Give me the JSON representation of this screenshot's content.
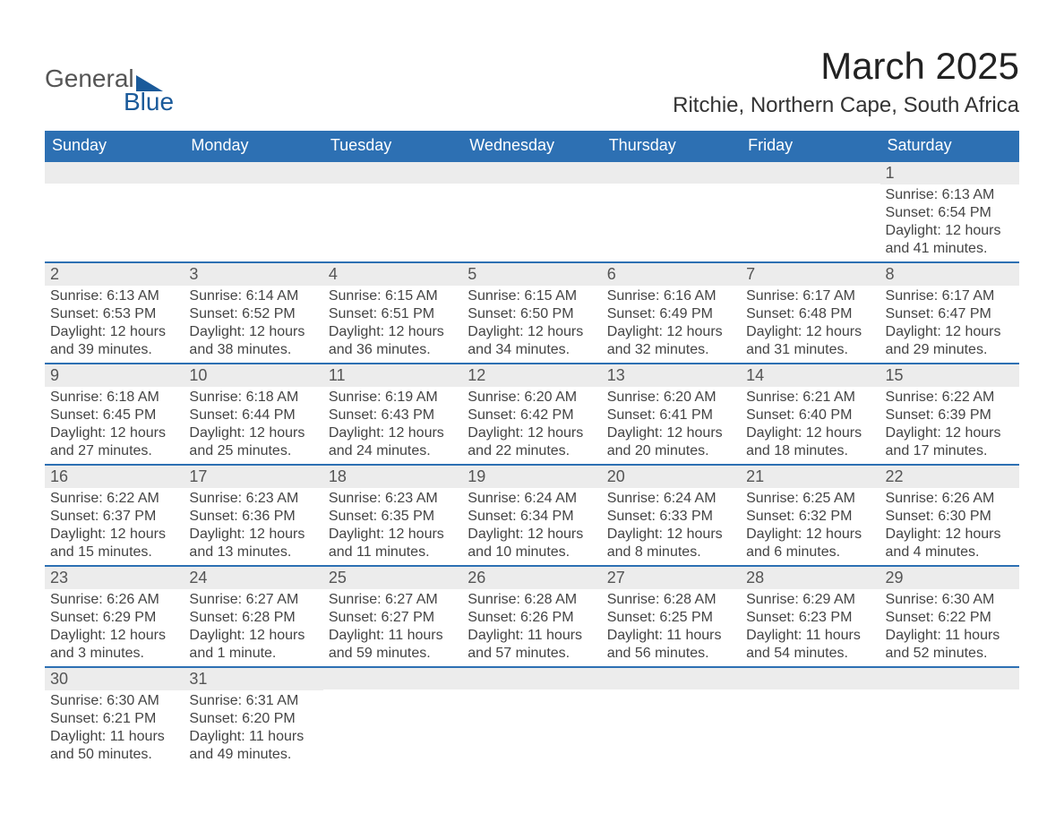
{
  "logo": {
    "text1": "General",
    "text2": "Blue"
  },
  "title": "March 2025",
  "location": "Ritchie, Northern Cape, South Africa",
  "colors": {
    "header_bg": "#2d70b3",
    "header_text": "#ffffff",
    "row_border": "#2d70b3",
    "daynum_bg": "#ececec",
    "body_text": "#444444",
    "title_text": "#222222",
    "logo_gray": "#555555",
    "logo_blue": "#1a5a9a"
  },
  "daysOfWeek": [
    "Sunday",
    "Monday",
    "Tuesday",
    "Wednesday",
    "Thursday",
    "Friday",
    "Saturday"
  ],
  "weeks": [
    [
      null,
      null,
      null,
      null,
      null,
      null,
      {
        "n": "1",
        "sunrise": "Sunrise: 6:13 AM",
        "sunset": "Sunset: 6:54 PM",
        "dl": "Daylight: 12 hours and 41 minutes."
      }
    ],
    [
      {
        "n": "2",
        "sunrise": "Sunrise: 6:13 AM",
        "sunset": "Sunset: 6:53 PM",
        "dl": "Daylight: 12 hours and 39 minutes."
      },
      {
        "n": "3",
        "sunrise": "Sunrise: 6:14 AM",
        "sunset": "Sunset: 6:52 PM",
        "dl": "Daylight: 12 hours and 38 minutes."
      },
      {
        "n": "4",
        "sunrise": "Sunrise: 6:15 AM",
        "sunset": "Sunset: 6:51 PM",
        "dl": "Daylight: 12 hours and 36 minutes."
      },
      {
        "n": "5",
        "sunrise": "Sunrise: 6:15 AM",
        "sunset": "Sunset: 6:50 PM",
        "dl": "Daylight: 12 hours and 34 minutes."
      },
      {
        "n": "6",
        "sunrise": "Sunrise: 6:16 AM",
        "sunset": "Sunset: 6:49 PM",
        "dl": "Daylight: 12 hours and 32 minutes."
      },
      {
        "n": "7",
        "sunrise": "Sunrise: 6:17 AM",
        "sunset": "Sunset: 6:48 PM",
        "dl": "Daylight: 12 hours and 31 minutes."
      },
      {
        "n": "8",
        "sunrise": "Sunrise: 6:17 AM",
        "sunset": "Sunset: 6:47 PM",
        "dl": "Daylight: 12 hours and 29 minutes."
      }
    ],
    [
      {
        "n": "9",
        "sunrise": "Sunrise: 6:18 AM",
        "sunset": "Sunset: 6:45 PM",
        "dl": "Daylight: 12 hours and 27 minutes."
      },
      {
        "n": "10",
        "sunrise": "Sunrise: 6:18 AM",
        "sunset": "Sunset: 6:44 PM",
        "dl": "Daylight: 12 hours and 25 minutes."
      },
      {
        "n": "11",
        "sunrise": "Sunrise: 6:19 AM",
        "sunset": "Sunset: 6:43 PM",
        "dl": "Daylight: 12 hours and 24 minutes."
      },
      {
        "n": "12",
        "sunrise": "Sunrise: 6:20 AM",
        "sunset": "Sunset: 6:42 PM",
        "dl": "Daylight: 12 hours and 22 minutes."
      },
      {
        "n": "13",
        "sunrise": "Sunrise: 6:20 AM",
        "sunset": "Sunset: 6:41 PM",
        "dl": "Daylight: 12 hours and 20 minutes."
      },
      {
        "n": "14",
        "sunrise": "Sunrise: 6:21 AM",
        "sunset": "Sunset: 6:40 PM",
        "dl": "Daylight: 12 hours and 18 minutes."
      },
      {
        "n": "15",
        "sunrise": "Sunrise: 6:22 AM",
        "sunset": "Sunset: 6:39 PM",
        "dl": "Daylight: 12 hours and 17 minutes."
      }
    ],
    [
      {
        "n": "16",
        "sunrise": "Sunrise: 6:22 AM",
        "sunset": "Sunset: 6:37 PM",
        "dl": "Daylight: 12 hours and 15 minutes."
      },
      {
        "n": "17",
        "sunrise": "Sunrise: 6:23 AM",
        "sunset": "Sunset: 6:36 PM",
        "dl": "Daylight: 12 hours and 13 minutes."
      },
      {
        "n": "18",
        "sunrise": "Sunrise: 6:23 AM",
        "sunset": "Sunset: 6:35 PM",
        "dl": "Daylight: 12 hours and 11 minutes."
      },
      {
        "n": "19",
        "sunrise": "Sunrise: 6:24 AM",
        "sunset": "Sunset: 6:34 PM",
        "dl": "Daylight: 12 hours and 10 minutes."
      },
      {
        "n": "20",
        "sunrise": "Sunrise: 6:24 AM",
        "sunset": "Sunset: 6:33 PM",
        "dl": "Daylight: 12 hours and 8 minutes."
      },
      {
        "n": "21",
        "sunrise": "Sunrise: 6:25 AM",
        "sunset": "Sunset: 6:32 PM",
        "dl": "Daylight: 12 hours and 6 minutes."
      },
      {
        "n": "22",
        "sunrise": "Sunrise: 6:26 AM",
        "sunset": "Sunset: 6:30 PM",
        "dl": "Daylight: 12 hours and 4 minutes."
      }
    ],
    [
      {
        "n": "23",
        "sunrise": "Sunrise: 6:26 AM",
        "sunset": "Sunset: 6:29 PM",
        "dl": "Daylight: 12 hours and 3 minutes."
      },
      {
        "n": "24",
        "sunrise": "Sunrise: 6:27 AM",
        "sunset": "Sunset: 6:28 PM",
        "dl": "Daylight: 12 hours and 1 minute."
      },
      {
        "n": "25",
        "sunrise": "Sunrise: 6:27 AM",
        "sunset": "Sunset: 6:27 PM",
        "dl": "Daylight: 11 hours and 59 minutes."
      },
      {
        "n": "26",
        "sunrise": "Sunrise: 6:28 AM",
        "sunset": "Sunset: 6:26 PM",
        "dl": "Daylight: 11 hours and 57 minutes."
      },
      {
        "n": "27",
        "sunrise": "Sunrise: 6:28 AM",
        "sunset": "Sunset: 6:25 PM",
        "dl": "Daylight: 11 hours and 56 minutes."
      },
      {
        "n": "28",
        "sunrise": "Sunrise: 6:29 AM",
        "sunset": "Sunset: 6:23 PM",
        "dl": "Daylight: 11 hours and 54 minutes."
      },
      {
        "n": "29",
        "sunrise": "Sunrise: 6:30 AM",
        "sunset": "Sunset: 6:22 PM",
        "dl": "Daylight: 11 hours and 52 minutes."
      }
    ],
    [
      {
        "n": "30",
        "sunrise": "Sunrise: 6:30 AM",
        "sunset": "Sunset: 6:21 PM",
        "dl": "Daylight: 11 hours and 50 minutes."
      },
      {
        "n": "31",
        "sunrise": "Sunrise: 6:31 AM",
        "sunset": "Sunset: 6:20 PM",
        "dl": "Daylight: 11 hours and 49 minutes."
      },
      null,
      null,
      null,
      null,
      null
    ]
  ]
}
